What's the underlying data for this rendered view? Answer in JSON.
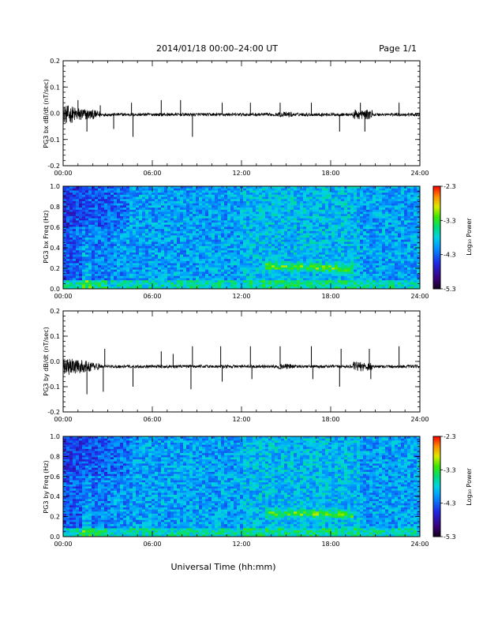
{
  "header": {
    "title": "2014/01/18  00:00–24:00 UT",
    "page": "Page 1/1"
  },
  "footer": {
    "xlabel": "Universal Time (hh:mm)"
  },
  "chart_data": [
    {
      "type": "line",
      "ylabel": "PG3 bx dB/dt (nT/sec)",
      "ylim": [
        -0.2,
        0.2
      ],
      "yticks": [
        "0.2",
        "0.1",
        "0.0",
        "-0.1",
        "-0.2"
      ],
      "xlim": [
        0,
        24
      ],
      "xticks": [
        "00:00",
        "06:00",
        "12:00",
        "18:00",
        "24:00"
      ],
      "baseline": -0.005,
      "spikes": [
        {
          "x": 1.0,
          "y": 0.05
        },
        {
          "x": 1.6,
          "y": -0.07
        },
        {
          "x": 2.5,
          "y": 0.03
        },
        {
          "x": 3.4,
          "y": -0.06
        },
        {
          "x": 4.6,
          "y": 0.04
        },
        {
          "x": 4.7,
          "y": -0.09
        },
        {
          "x": 6.6,
          "y": 0.05
        },
        {
          "x": 7.9,
          "y": 0.05
        },
        {
          "x": 8.7,
          "y": -0.09
        },
        {
          "x": 10.7,
          "y": 0.04
        },
        {
          "x": 12.6,
          "y": 0.04
        },
        {
          "x": 14.6,
          "y": 0.04
        },
        {
          "x": 16.7,
          "y": 0.04
        },
        {
          "x": 18.6,
          "y": -0.07
        },
        {
          "x": 20.0,
          "y": 0.04
        },
        {
          "x": 20.3,
          "y": -0.07
        },
        {
          "x": 22.6,
          "y": 0.04
        }
      ]
    },
    {
      "type": "heatmap",
      "ylabel": "PG3 bx Freq (Hz)",
      "ylim": [
        0,
        1.0
      ],
      "yticks": [
        "1.0",
        "0.8",
        "0.6",
        "0.4",
        "0.2",
        "0.0"
      ],
      "xlim": [
        0,
        24
      ],
      "xticks": [
        "00:00",
        "06:00",
        "12:00",
        "18:00",
        "24:00"
      ],
      "colorbar": {
        "label": "Log₁₀ Power",
        "range": [
          -5.3,
          -2.3
        ],
        "ticks": [
          "-2.3",
          "-3.3",
          "-4.3",
          "-5.3"
        ]
      },
      "band": {
        "t_start": 13.5,
        "t_end": 19.5,
        "f_center": 0.22
      }
    },
    {
      "type": "line",
      "ylabel": "PG3 by dB/dt (nT/sec)",
      "ylim": [
        -0.2,
        0.2
      ],
      "yticks": [
        "0.2",
        "0.1",
        "0.0",
        "-0.1",
        "-0.2"
      ],
      "xlim": [
        0,
        24
      ],
      "xticks": [
        "00:00",
        "06:00",
        "12:00",
        "18:00",
        "24:00"
      ],
      "baseline": -0.02,
      "spikes": [
        {
          "x": 1.6,
          "y": -0.13
        },
        {
          "x": 2.7,
          "y": -0.12
        },
        {
          "x": 2.8,
          "y": 0.05
        },
        {
          "x": 4.7,
          "y": -0.1
        },
        {
          "x": 6.6,
          "y": 0.04
        },
        {
          "x": 7.4,
          "y": 0.03
        },
        {
          "x": 8.6,
          "y": -0.11
        },
        {
          "x": 8.7,
          "y": 0.06
        },
        {
          "x": 10.6,
          "y": 0.06
        },
        {
          "x": 10.7,
          "y": -0.08
        },
        {
          "x": 12.6,
          "y": 0.06
        },
        {
          "x": 12.7,
          "y": -0.07
        },
        {
          "x": 14.6,
          "y": 0.06
        },
        {
          "x": 16.7,
          "y": 0.06
        },
        {
          "x": 16.8,
          "y": -0.07
        },
        {
          "x": 18.6,
          "y": -0.1
        },
        {
          "x": 18.7,
          "y": 0.05
        },
        {
          "x": 20.6,
          "y": 0.05
        },
        {
          "x": 20.7,
          "y": -0.07
        },
        {
          "x": 22.6,
          "y": 0.06
        }
      ]
    },
    {
      "type": "heatmap",
      "ylabel": "PG3 by Freq (Hz)",
      "ylim": [
        0,
        1.0
      ],
      "yticks": [
        "1.0",
        "0.8",
        "0.6",
        "0.4",
        "0.2",
        "0.0"
      ],
      "xlim": [
        0,
        24
      ],
      "xticks": [
        "00:00",
        "06:00",
        "12:00",
        "18:00",
        "24:00"
      ],
      "colorbar": {
        "label": "Log₁₀ Power",
        "range": [
          -5.3,
          -2.3
        ],
        "ticks": [
          "-2.3",
          "-3.3",
          "-4.3",
          "-5.3"
        ]
      },
      "band": {
        "t_start": 13.5,
        "t_end": 19.5,
        "f_center": 0.24
      }
    }
  ]
}
